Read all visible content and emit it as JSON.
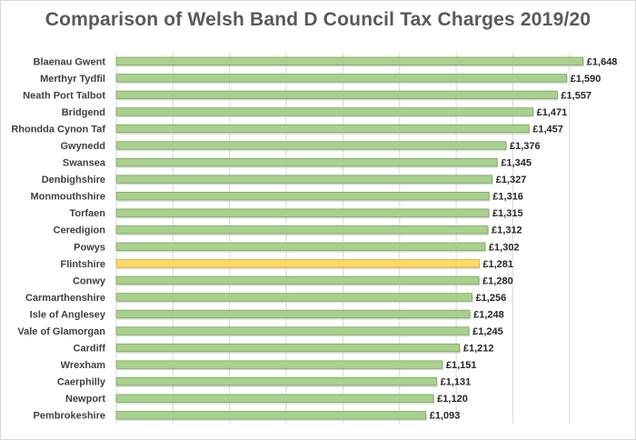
{
  "chart_data": {
    "type": "bar",
    "orientation": "horizontal",
    "title": "Comparison of Welsh Band D Council Tax Charges 2019/20",
    "xlabel": "",
    "ylabel": "",
    "xlim": [
      0,
      1700
    ],
    "grid": true,
    "currency_prefix": "£",
    "highlight_category": "Flintshire",
    "colors": {
      "bar": "#a9d18e",
      "bar_edge": "#7aa35c",
      "highlight": "#ffd966",
      "highlight_edge": "#d4aa2c",
      "grid": "#d9d9d9"
    },
    "categories": [
      "Blaenau Gwent",
      "Merthyr Tydfil",
      "Neath Port Talbot",
      "Bridgend",
      "Rhondda Cynon Taf",
      "Gwynedd",
      "Swansea",
      "Denbighshire",
      "Monmouthshire",
      "Torfaen",
      "Ceredigion",
      "Powys",
      "Flintshire",
      "Conwy",
      "Carmarthenshire",
      "Isle of Anglesey",
      "Vale of Glamorgan",
      "Cardiff",
      "Wrexham",
      "Caerphilly",
      "Newport",
      "Pembrokeshire"
    ],
    "values": [
      1648,
      1590,
      1557,
      1471,
      1457,
      1376,
      1345,
      1327,
      1316,
      1315,
      1312,
      1302,
      1281,
      1280,
      1256,
      1248,
      1245,
      1212,
      1151,
      1131,
      1120,
      1093
    ],
    "value_labels": [
      "£1,648",
      "£1,590",
      "£1,557",
      "£1,471",
      "£1,457",
      "£1,376",
      "£1,345",
      "£1,327",
      "£1,316",
      "£1,315",
      "£1,312",
      "£1,302",
      "£1,281",
      "£1,280",
      "£1,256",
      "£1,248",
      "£1,245",
      "£1,212",
      "£1,151",
      "£1,131",
      "£1,120",
      "£1,093"
    ]
  }
}
